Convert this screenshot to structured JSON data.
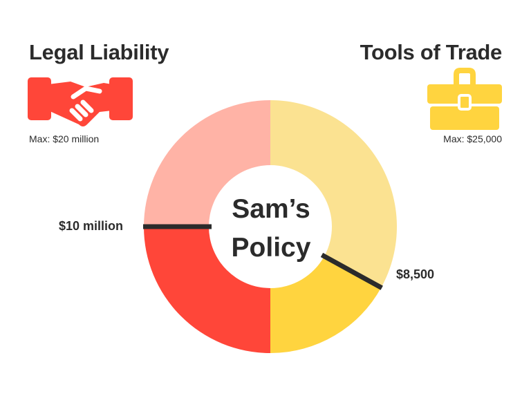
{
  "categories": {
    "legal": {
      "title": "Legal Liability",
      "max_label": "Max: $20 million",
      "icon": "handshake-icon",
      "color_filled": "#ff4639",
      "color_remaining": "#ffb3a6"
    },
    "tools": {
      "title": "Tools of Trade",
      "max_label": "Max: $25,000",
      "icon": "briefcase-icon",
      "color_filled": "#ffd43f",
      "color_remaining": "#fbe291"
    }
  },
  "policy": {
    "line1": "Sam’s",
    "line2": "Policy"
  },
  "callouts": {
    "legal": "$10 million",
    "tools": "$8,500"
  },
  "coverage": {
    "legal": {
      "selected": 10000000,
      "max": 20000000
    },
    "tools": {
      "selected": 8500,
      "max": 25000
    }
  }
}
